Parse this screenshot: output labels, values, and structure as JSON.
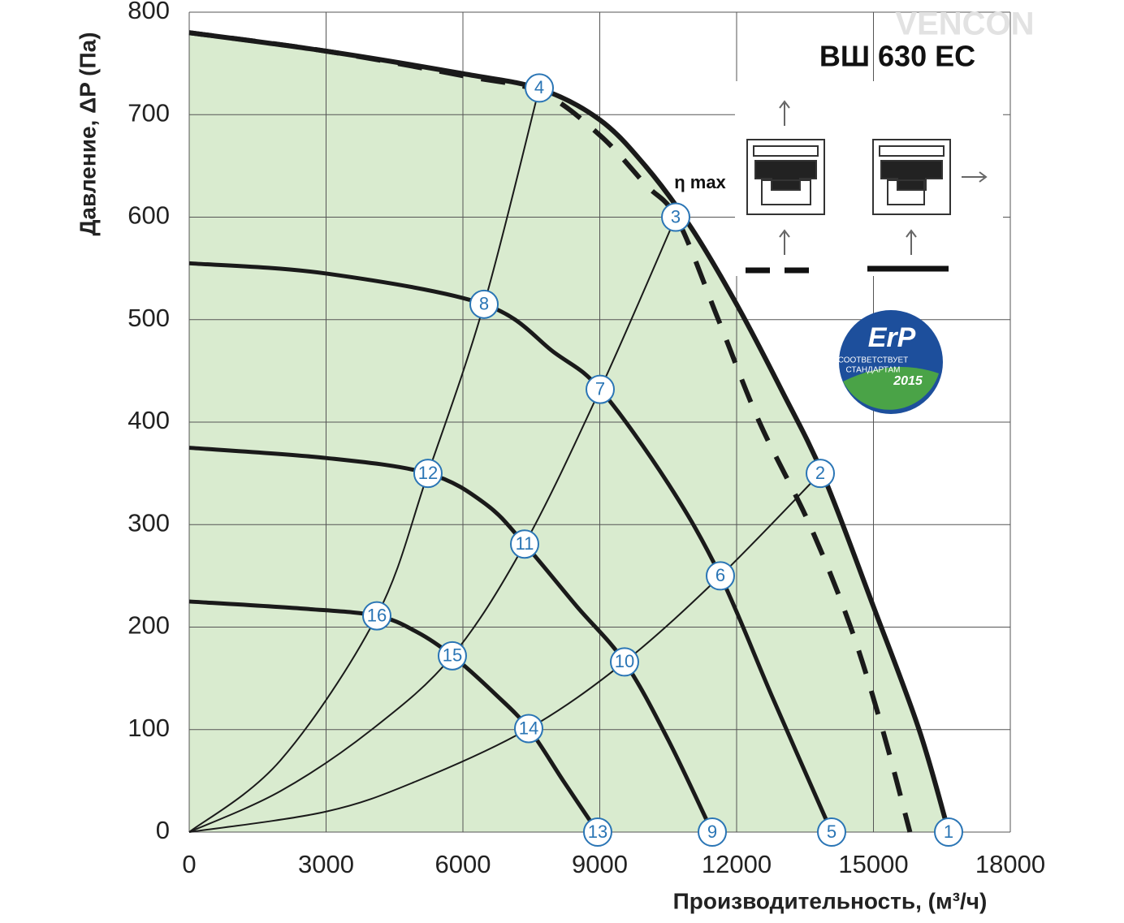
{
  "chart_data": {
    "type": "line",
    "title": "ВШ 630 ЕС",
    "x_label": "Производительность, (м³/ч)",
    "y_label": "Давление, ΔP (Па)",
    "annotations": {
      "eta": "η max",
      "logo": "VENCON",
      "badge_title": "ErP",
      "badge_line1": "СООТВЕТСТВУЕТ",
      "badge_line2": "СТАНДАРТАМ",
      "badge_year": "2015"
    },
    "xlim": [
      0,
      18000
    ],
    "ylim": [
      0,
      800
    ],
    "xticks": [
      0,
      3000,
      6000,
      9000,
      12000,
      15000,
      18000
    ],
    "yticks": [
      0,
      100,
      200,
      300,
      400,
      500,
      600,
      700,
      800
    ],
    "grid": true,
    "fill_color": "#d9ebcf",
    "series": [
      {
        "color": "#1a1a1a",
        "style": "solid",
        "width": 6,
        "fill": true,
        "x": [
          0,
          3000,
          6000,
          7700,
          9000,
          10000,
          11000,
          12000,
          13000,
          13900,
          15000,
          16000,
          16650
        ],
        "values": [
          780,
          762,
          740,
          725,
          695,
          650,
          590,
          515,
          430,
          348,
          220,
          100,
          0
        ]
      },
      {
        "color": "#1a1a1a",
        "style": "dashed",
        "width": 6,
        "x": [
          0,
          3000,
          6000,
          7700,
          9000,
          10000,
          10700,
          11600,
          12500,
          13600,
          14500,
          15200,
          15800
        ],
        "values": [
          780,
          762,
          738,
          722,
          680,
          632,
          598,
          500,
          400,
          300,
          200,
          100,
          0
        ]
      },
      {
        "color": "#1a1a1a",
        "style": "solid",
        "width": 5,
        "x": [
          0,
          3000,
          6463,
          8000,
          9009,
          10500,
          11644,
          12800,
          14083
        ],
        "values": [
          555,
          545,
          515,
          468,
          432,
          340,
          250,
          130,
          0
        ]
      },
      {
        "color": "#1a1a1a",
        "style": "solid",
        "width": 5,
        "x": [
          0,
          3000,
          5234,
          6500,
          7353,
          8500,
          9543,
          10500,
          11466
        ],
        "values": [
          375,
          365,
          350,
          320,
          281,
          220,
          166,
          90,
          0
        ]
      },
      {
        "color": "#1a1a1a",
        "style": "solid",
        "width": 5,
        "x": [
          0,
          2500,
          4113,
          5000,
          5768,
          6700,
          7442,
          8200,
          8955
        ],
        "values": [
          225,
          218,
          211,
          195,
          172,
          135,
          101,
          50,
          0
        ]
      },
      {
        "color": "#1a1a1a",
        "style": "solid",
        "width": 2,
        "x": [
          0,
          3000,
          5000,
          7442,
          9543,
          11644,
          13834
        ],
        "values": [
          0,
          20,
          50,
          101,
          166,
          250,
          350
        ]
      },
      {
        "color": "#1a1a1a",
        "style": "solid",
        "width": 2,
        "x": [
          0,
          2000,
          4000,
          5768,
          7353,
          9009,
          10665
        ],
        "values": [
          0,
          40,
          100,
          172,
          281,
          432,
          600
        ]
      },
      {
        "color": "#1a1a1a",
        "style": "solid",
        "width": 2,
        "x": [
          0,
          2000,
          4113,
          5234,
          6463,
          7674
        ],
        "values": [
          0,
          70,
          211,
          350,
          515,
          726
        ]
      }
    ],
    "markers": [
      {
        "label": "1",
        "x": 16647,
        "y": 0
      },
      {
        "label": "2",
        "x": 13834,
        "y": 350
      },
      {
        "label": "3",
        "x": 10665,
        "y": 600
      },
      {
        "label": "4",
        "x": 7674,
        "y": 726
      },
      {
        "label": "5",
        "x": 14083,
        "y": 0
      },
      {
        "label": "6",
        "x": 11644,
        "y": 250
      },
      {
        "label": "7",
        "x": 9009,
        "y": 432
      },
      {
        "label": "8",
        "x": 6463,
        "y": 515
      },
      {
        "label": "9",
        "x": 11466,
        "y": 0
      },
      {
        "label": "10",
        "x": 9543,
        "y": 166
      },
      {
        "label": "11",
        "x": 7353,
        "y": 281
      },
      {
        "label": "12",
        "x": 5234,
        "y": 350
      },
      {
        "label": "13",
        "x": 8955,
        "y": 0
      },
      {
        "label": "14",
        "x": 7442,
        "y": 101
      },
      {
        "label": "15",
        "x": 5768,
        "y": 172
      },
      {
        "label": "16",
        "x": 4113,
        "y": 211
      }
    ]
  }
}
